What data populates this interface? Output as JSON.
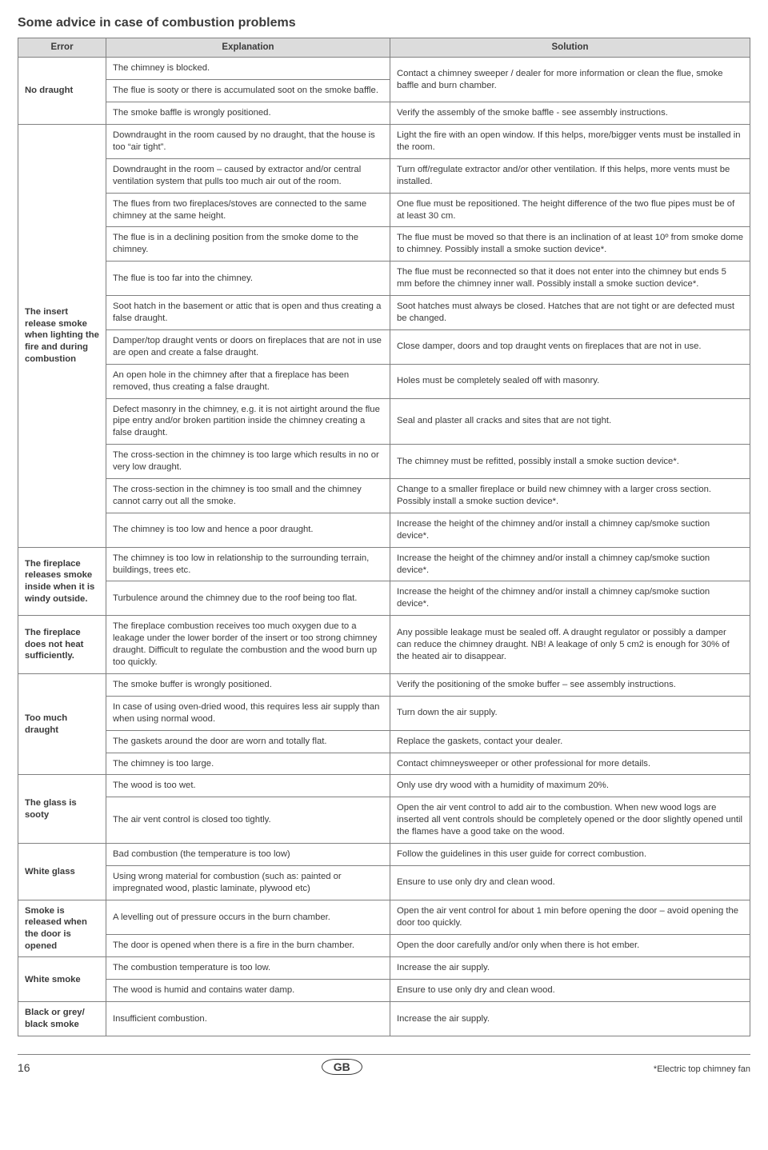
{
  "title": "Some advice in case of combustion problems",
  "headers": {
    "error": "Error",
    "explanation": "Explanation",
    "solution": "Solution"
  },
  "groups": [
    {
      "error": "No draught",
      "rows": [
        {
          "expl": "The chimney is blocked.",
          "sol_rowspan": 2,
          "sol": "Contact a chimney sweeper / dealer for more information or clean the flue, smoke baffle and burn chamber."
        },
        {
          "expl": "The flue is sooty or there is accumulated soot on the smoke baffle."
        },
        {
          "expl": "The smoke baffle is wrongly positioned.",
          "sol": "Verify the assembly of the smoke baffle - see assembly instructions."
        }
      ]
    },
    {
      "error": "The insert release smoke when lighting the fire and during combustion",
      "rows": [
        {
          "expl": "Downdraught in the room caused by no draught, that the house is too “air tight”.",
          "sol": "Light the fire with an open window. If this helps, more/bigger vents must be installed in the room."
        },
        {
          "expl": "Downdraught in the room – caused by extractor and/or central ventilation system that pulls too much air out of the room.",
          "sol": "Turn off/regulate extractor and/or other ventilation. If this helps, more vents must be installed."
        },
        {
          "expl": "The flues from two fireplaces/stoves are connected to the same chimney at the same height.",
          "sol": "One flue must be repositioned. The height difference of the two flue pipes must be of at least 30 cm."
        },
        {
          "expl": "The flue is in a declining position from the smoke dome to the chimney.",
          "sol": "The flue must be moved so that there is an inclination of at least 10º from smoke dome to chimney. Possibly install a smoke suction device*."
        },
        {
          "expl": "The flue is too far into the chimney.",
          "sol": "The flue must be reconnected so that it does not enter into the chimney but ends 5 mm before the chimney inner wall. Possibly install a smoke suction device*."
        },
        {
          "expl": "Soot hatch in the basement or attic that is open and thus creating a false draught.",
          "sol": "Soot hatches must always be closed. Hatches that are not tight or are defected must be changed."
        },
        {
          "expl": "Damper/top draught vents or doors on fireplaces that are not in use are open and create a false draught.",
          "sol": "Close damper, doors and top draught vents on fireplaces that are not in use."
        },
        {
          "expl": "An open hole in the chimney after that a fireplace has been removed, thus creating a false draught.",
          "sol": "Holes must be completely sealed off with masonry."
        },
        {
          "expl": "Defect masonry in the chimney, e.g. it is not airtight around the flue pipe entry and/or broken partition inside the chimney creating a false draught.",
          "sol": "Seal and plaster all cracks and sites that are not tight."
        },
        {
          "expl": "The cross-section in the chimney is too large which results in no or very low draught.",
          "sol": "The chimney must be refitted, possibly install a smoke suction device*."
        },
        {
          "expl": "The cross-section in the chimney is too small and the chimney cannot carry out all the smoke.",
          "sol": "Change to a smaller fireplace or build new chimney with a larger cross section. Possibly install a smoke suction device*."
        },
        {
          "expl": "The chimney is too low and hence a poor draught.",
          "sol": "Increase the height of the chimney and/or install a chimney cap/smoke suction device*."
        }
      ]
    },
    {
      "error": "The fireplace releases smoke inside when it is windy outside.",
      "rows": [
        {
          "expl": "The chimney is too low in relationship to the surrounding terrain, buildings, trees etc.",
          "sol": "Increase the height of the chimney and/or install a chimney cap/smoke suction device*."
        },
        {
          "expl": "Turbulence around the chimney due to the roof being too flat.",
          "sol": "Increase the height of the chimney and/or install a chimney cap/smoke suction device*."
        }
      ]
    },
    {
      "error": "The fireplace does not heat sufficiently.",
      "rows": [
        {
          "expl": "The fireplace combustion receives too much oxygen due to a leakage under the lower border of the insert or too strong chimney draught. Difficult to regulate the combustion and the wood burn up too quickly.",
          "sol": "Any possible leakage must be sealed off. A draught regulator or possibly a damper can reduce the chimney draught. NB! A leakage of only 5 cm2 is enough for 30% of the heated air to disappear."
        }
      ]
    },
    {
      "error": "Too much draught",
      "rows": [
        {
          "expl": "The smoke buffer is wrongly positioned.",
          "sol": "Verify the positioning of the smoke buffer – see assembly instructions."
        },
        {
          "expl": "In case of using oven-dried wood, this requires less air supply than when using normal wood.",
          "sol": "Turn down the air supply."
        },
        {
          "expl": "The gaskets around the door are worn and totally flat.",
          "sol": "Replace the gaskets, contact your dealer."
        },
        {
          "expl": "The chimney is too large.",
          "sol": "Contact chimneysweeper or other professional for more details."
        }
      ]
    },
    {
      "error": "The glass is sooty",
      "rows": [
        {
          "expl": "The wood is too wet.",
          "sol": "Only use dry wood with a humidity of maximum 20%."
        },
        {
          "expl": "The air vent control is closed too tightly.",
          "sol": "Open the air vent control to add air to the combustion. When new wood logs are inserted all vent controls should be completely opened or the door slightly opened until the flames have a good take on the wood."
        }
      ]
    },
    {
      "error": "White glass",
      "rows": [
        {
          "expl": "Bad combustion (the temperature is too low)",
          "sol": "Follow the guidelines in this user guide for correct combustion."
        },
        {
          "expl": "Using wrong material for combustion (such as: painted or impregnated wood, plastic laminate, plywood etc)",
          "sol": "Ensure to use only dry and clean wood."
        }
      ]
    },
    {
      "error": "Smoke is released when the door is opened",
      "rows": [
        {
          "expl": "A levelling out of pressure occurs in the burn chamber.",
          "sol": "Open the air vent control for about 1 min before opening the door – avoid opening the door too quickly."
        },
        {
          "expl": "The door is opened when there is a fire in the burn chamber.",
          "sol": "Open the door carefully and/or only when there is hot ember."
        }
      ]
    },
    {
      "error": "White smoke",
      "rows": [
        {
          "expl": "The combustion temperature is too low.",
          "sol": "Increase the air supply."
        },
        {
          "expl": "The wood is humid and contains water damp.",
          "sol": "Ensure to use only dry and clean wood."
        }
      ]
    },
    {
      "error": "Black or grey/ black smoke",
      "rows": [
        {
          "expl": "Insufficient combustion.",
          "sol": "Increase the air supply."
        }
      ]
    }
  ],
  "footer": {
    "page": "16",
    "country": "GB",
    "footnote": "*Electric top chimney fan"
  }
}
